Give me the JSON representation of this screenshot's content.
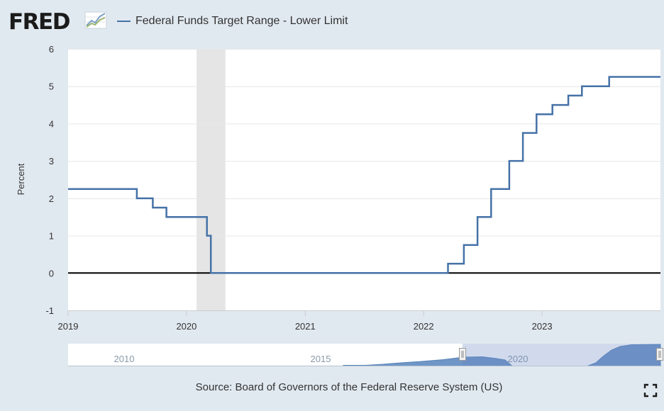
{
  "logo": {
    "text": "FRED",
    "icon": "trend-line-chart-icon"
  },
  "legend": {
    "series_name": "Federal Funds Target Range - Lower Limit",
    "color": "#4572a7"
  },
  "source": "Source: Board of Governors of the Federal Reserve System (US)",
  "fullscreen_icon": "expand-icon",
  "colors": {
    "background": "#e1e9f0",
    "plot_background": "#ffffff",
    "series": "#4572a7",
    "recession_band": "#e5e5e5",
    "zero_line": "#000000",
    "navigator_fill": "#6f96c6"
  },
  "chart_data": {
    "type": "line",
    "step": true,
    "title": "",
    "xlabel": "",
    "ylabel": "Percent",
    "ylim": [
      -1,
      6
    ],
    "yticks": [
      "6",
      "5",
      "4",
      "3",
      "2",
      "1",
      "0",
      "-1"
    ],
    "xticks": [
      "2019",
      "2020",
      "2021",
      "2022",
      "2023"
    ],
    "xlim": [
      "2019-01-01",
      "2024-01-01"
    ],
    "grid": true,
    "legend_position": "top-left",
    "zero_line": true,
    "recession_shading": [
      {
        "start": "2020-02-01",
        "end": "2020-04-30"
      }
    ],
    "series": [
      {
        "name": "Federal Funds Target Range - Lower Limit",
        "x": [
          "2019-01-01",
          "2019-08-01",
          "2019-09-19",
          "2019-10-31",
          "2020-03-04",
          "2020-03-16",
          "2022-03-17",
          "2022-05-05",
          "2022-06-16",
          "2022-07-28",
          "2022-09-22",
          "2022-11-03",
          "2022-12-15",
          "2023-02-02",
          "2023-03-23",
          "2023-05-04",
          "2023-07-27",
          "2024-01-01"
        ],
        "values": [
          2.25,
          2.0,
          1.75,
          1.5,
          1.0,
          0.0,
          0.25,
          0.75,
          1.5,
          2.25,
          3.0,
          3.75,
          4.25,
          4.5,
          4.75,
          5.0,
          5.25,
          5.25
        ]
      }
    ]
  },
  "navigator": {
    "labels": [
      "2010",
      "2015",
      "2020"
    ],
    "selection_start": "2019-01-01",
    "selection_end": "2024-01-01"
  }
}
